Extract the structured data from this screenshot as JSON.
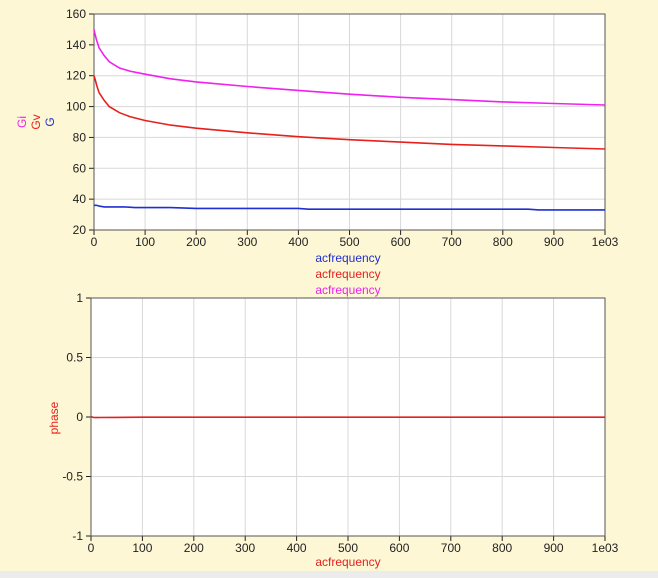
{
  "background": "#fdf7d6",
  "colors": {
    "G": "#1f2fd0",
    "Gv": "#e8201c",
    "Gi": "#f020f0",
    "phase": "#e8201c",
    "grid": "#d8d8d8"
  },
  "chart_data": [
    {
      "type": "line",
      "xlim": [
        0,
        1000
      ],
      "ylim": [
        20,
        160
      ],
      "x_ticks": [
        "0",
        "100",
        "200",
        "300",
        "400",
        "500",
        "600",
        "700",
        "800",
        "900",
        "1e03"
      ],
      "y_ticks": [
        "20",
        "40",
        "60",
        "80",
        "100",
        "120",
        "140",
        "160"
      ],
      "ylabels": [
        "Gi",
        "Gv",
        "G"
      ],
      "xlabels": [
        "acfrequency",
        "acfrequency",
        "acfrequency"
      ],
      "grid": true,
      "series": [
        {
          "name": "G",
          "color": "#1f2fd0",
          "x": [
            0,
            5,
            10,
            20,
            40,
            60,
            80,
            100,
            150,
            200,
            300,
            400,
            420,
            500,
            600,
            700,
            800,
            850,
            870,
            900,
            1000
          ],
          "y": [
            36,
            36,
            35.5,
            35,
            35,
            35,
            34.5,
            34.5,
            34.5,
            34,
            34,
            34,
            33.5,
            33.5,
            33.5,
            33.5,
            33.5,
            33.5,
            33,
            33,
            33
          ]
        },
        {
          "name": "Gv",
          "color": "#e8201c",
          "x": [
            0,
            2,
            5,
            10,
            20,
            30,
            50,
            70,
            100,
            150,
            200,
            300,
            400,
            500,
            600,
            700,
            800,
            900,
            1000
          ],
          "y": [
            120,
            118,
            114,
            109,
            104,
            100,
            96,
            93.5,
            91,
            88,
            86,
            83,
            80.5,
            78.5,
            77,
            75.5,
            74.5,
            73.5,
            72.5
          ]
        },
        {
          "name": "Gi",
          "color": "#f020f0",
          "x": [
            0,
            2,
            5,
            10,
            20,
            30,
            50,
            70,
            100,
            150,
            200,
            300,
            400,
            500,
            600,
            700,
            800,
            900,
            1000
          ],
          "y": [
            150,
            147,
            143,
            138,
            133,
            129,
            125,
            123,
            121,
            118,
            116,
            113,
            110.5,
            108,
            106,
            104.5,
            103,
            102,
            101
          ]
        }
      ]
    },
    {
      "type": "line",
      "xlim": [
        0,
        1000
      ],
      "ylim": [
        -1,
        1
      ],
      "x_ticks": [
        "0",
        "100",
        "200",
        "300",
        "400",
        "500",
        "600",
        "700",
        "800",
        "900",
        "1e03"
      ],
      "y_ticks": [
        "-1",
        "-0.5",
        "0",
        "0.5",
        "1"
      ],
      "ylabel": "phase",
      "xlabel": "acfrequency",
      "grid": true,
      "series": [
        {
          "name": "phase",
          "color": "#e8201c",
          "x": [
            0,
            5,
            10,
            20,
            50,
            100,
            1000
          ],
          "y": [
            0.003,
            -0.004,
            -0.005,
            -0.004,
            -0.003,
            -0.002,
            -0.002
          ]
        }
      ]
    }
  ]
}
